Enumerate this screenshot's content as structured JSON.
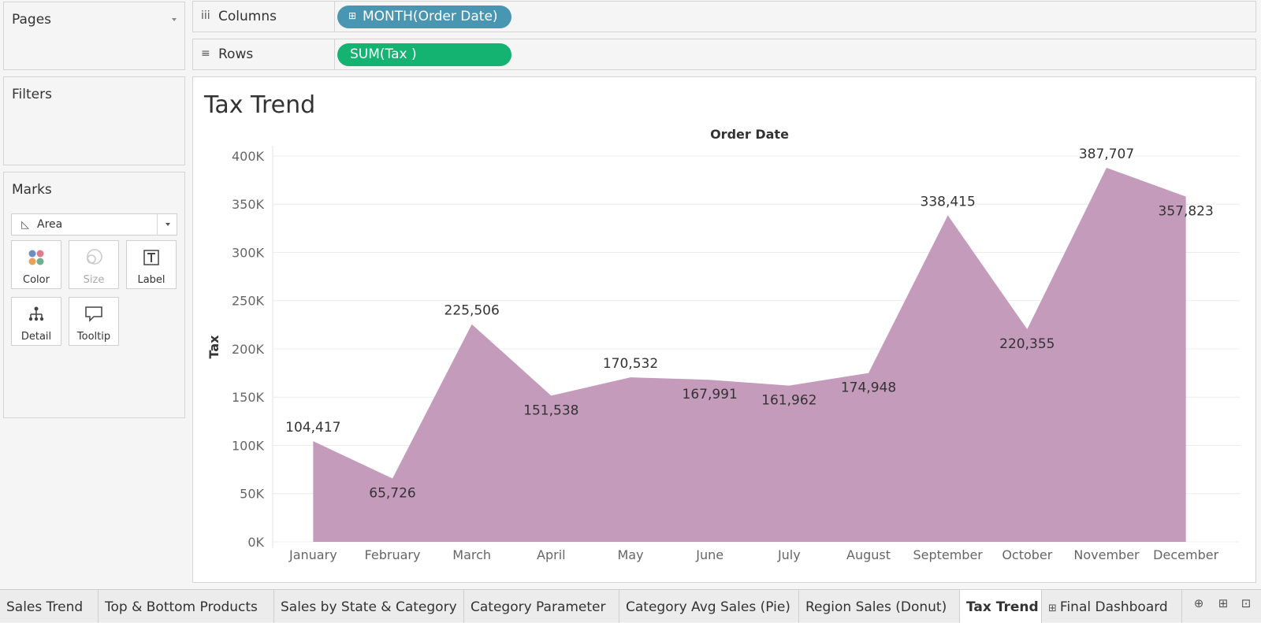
{
  "cards": {
    "pages": "Pages",
    "filters": "Filters",
    "marks": "Marks"
  },
  "marks": {
    "type": "Area",
    "type_icon": "area-chart-icon",
    "buttons": [
      {
        "label": "Color",
        "icon": "color-dots-icon"
      },
      {
        "label": "Size",
        "icon": "size-circles-icon"
      },
      {
        "label": "Label",
        "icon": "label-t-icon"
      },
      {
        "label": "Detail",
        "icon": "detail-tree-icon"
      },
      {
        "label": "Tooltip",
        "icon": "tooltip-bubble-icon"
      }
    ]
  },
  "shelves": {
    "columns_label": "Columns",
    "columns_icon": "iii",
    "columns_pill": "MONTH(Order Date)",
    "columns_pill_color": "#4996b2",
    "rows_label": "Rows",
    "rows_icon": "≡",
    "rows_pill": "SUM(Tax )",
    "rows_pill_color": "#15b371"
  },
  "view": {
    "title": "Tax Trend"
  },
  "chart_data": {
    "type": "area",
    "title": "Tax Trend",
    "xlabel": "Order Date",
    "ylabel": "Tax",
    "categories": [
      "January",
      "February",
      "March",
      "April",
      "May",
      "June",
      "July",
      "August",
      "September",
      "October",
      "November",
      "December"
    ],
    "values": [
      104417,
      65726,
      225506,
      151538,
      170532,
      167991,
      161962,
      174948,
      338415,
      220355,
      387707,
      357823
    ],
    "value_labels": [
      "104,417",
      "65,726",
      "225,506",
      "151,538",
      "170,532",
      "167,991",
      "161,962",
      "174,948",
      "338,415",
      "220,355",
      "387,707",
      "357,823"
    ],
    "yticks": [
      "0K",
      "50K",
      "100K",
      "150K",
      "200K",
      "250K",
      "300K",
      "350K",
      "400K"
    ],
    "ylim": [
      0,
      400000
    ],
    "color": "#c49bbb",
    "grid": true
  },
  "tabs": [
    {
      "label": "Sales Trend",
      "active": false
    },
    {
      "label": "Top & Bottom Products",
      "active": false
    },
    {
      "label": "Sales by State & Category",
      "active": false
    },
    {
      "label": "Category Parameter",
      "active": false
    },
    {
      "label": "Category Avg Sales (Pie)",
      "active": false
    },
    {
      "label": "Region Sales (Donut)",
      "active": false
    },
    {
      "label": "Tax Trend",
      "active": true
    },
    {
      "label": "Final Dashboard",
      "active": false,
      "icon": "⊞"
    }
  ],
  "tab_actions": [
    "new-worksheet-icon",
    "new-dashboard-icon",
    "new-story-icon"
  ]
}
